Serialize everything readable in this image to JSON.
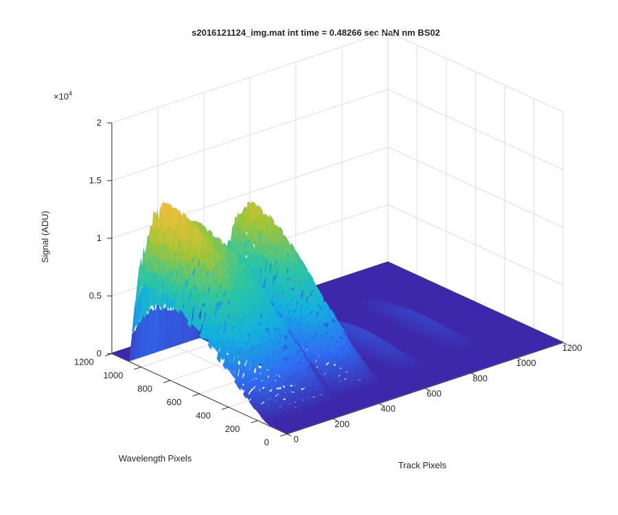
{
  "chart_data": {
    "type": "surface",
    "title": "s2016121124_img.mat int time = 0.48266 sec  NaN nm BS02",
    "xlabel": "Track Pixels",
    "ylabel": "Wavelength Pixels",
    "zlabel": "Signal (ADU)",
    "z_exponent_label": "×10",
    "z_exponent_power": "4",
    "x_ticks": [
      "0",
      "200",
      "400",
      "600",
      "800",
      "1000",
      "1200"
    ],
    "y_ticks": [
      "0",
      "200",
      "400",
      "600",
      "800",
      "1000",
      "1200"
    ],
    "z_ticks": [
      "0",
      "0.5",
      "1",
      "1.5",
      "2"
    ],
    "xlim": [
      0,
      1200
    ],
    "ylim": [
      0,
      1200
    ],
    "zlim": [
      0,
      20000
    ],
    "grid": true,
    "colormap": "parula",
    "colors": [
      "#3e26a8",
      "#2f6ff4",
      "#13b1de",
      "#2dc6a1",
      "#a6c534",
      "#fcbe3d",
      "#f9fb15"
    ],
    "peaks": [
      {
        "track_pixels": [
          0,
          300
        ],
        "max_signal": 15000
      },
      {
        "track_pixels": [
          330,
          520
        ],
        "max_signal": 12000
      },
      {
        "track_pixels": [
          600,
          750
        ],
        "max_signal": 1300
      },
      {
        "track_pixels": [
          850,
          1000
        ],
        "max_signal": 900
      }
    ]
  }
}
